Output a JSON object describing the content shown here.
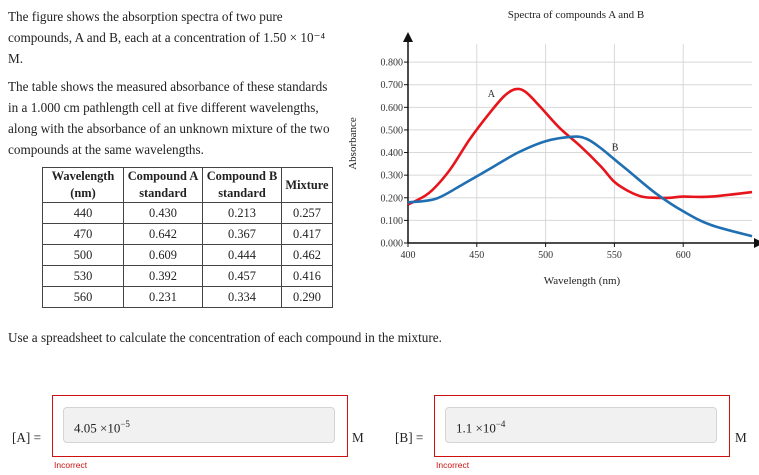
{
  "intro": {
    "p1": "The figure shows the absorption spectra of two pure compounds, A and B, each at a concentration of 1.50 × 10⁻⁴ M.",
    "p2": "The table shows the measured absorbance of these standards in a 1.000 cm pathlength cell at five different wavelengths, along with the absorbance of an unknown mixture of the two compounds at the same wavelengths."
  },
  "table": {
    "headers": [
      "Wavelength (nm)",
      "Compound A standard",
      "Compound B standard",
      "Mixture"
    ],
    "rows": [
      [
        "440",
        "0.430",
        "0.213",
        "0.257"
      ],
      [
        "470",
        "0.642",
        "0.367",
        "0.417"
      ],
      [
        "500",
        "0.609",
        "0.444",
        "0.462"
      ],
      [
        "530",
        "0.392",
        "0.457",
        "0.416"
      ],
      [
        "560",
        "0.231",
        "0.334",
        "0.290"
      ]
    ]
  },
  "chart_data": {
    "type": "line",
    "title": "Spectra of compounds A and B",
    "xlabel": "Wavelength (nm)",
    "ylabel": "Absorbance",
    "xlim": [
      400,
      650
    ],
    "ylim": [
      0,
      0.88
    ],
    "xticks": [
      "400",
      "450",
      "500",
      "550",
      "600"
    ],
    "yticks": [
      "0.000",
      "0.100",
      "0.200",
      "0.300",
      "0.400",
      "0.500",
      "0.600",
      "0.700",
      "0.800"
    ],
    "grid": true,
    "series": [
      {
        "name": "A",
        "color": "#e8141b",
        "x": [
          400,
          415,
          430,
          445,
          460,
          470,
          478,
          485,
          495,
          510,
          525,
          540,
          550,
          560,
          570,
          580,
          590,
          600,
          620,
          650
        ],
        "y": [
          0.17,
          0.22,
          0.32,
          0.46,
          0.58,
          0.65,
          0.68,
          0.67,
          0.61,
          0.51,
          0.43,
          0.34,
          0.27,
          0.23,
          0.205,
          0.2,
          0.2,
          0.205,
          0.205,
          0.225
        ]
      },
      {
        "name": "B",
        "color": "#1f6fb2",
        "x": [
          400,
          420,
          440,
          460,
          480,
          500,
          520,
          530,
          540,
          550,
          560,
          580,
          600,
          620,
          650
        ],
        "y": [
          0.18,
          0.195,
          0.26,
          0.33,
          0.4,
          0.45,
          0.47,
          0.46,
          0.42,
          0.37,
          0.32,
          0.22,
          0.14,
          0.08,
          0.03
        ]
      }
    ]
  },
  "instruction": "Use a spreadsheet to calculate the concentration of each compound in the mixture.",
  "answers": {
    "a": {
      "label": "[A] =",
      "mantissa": "4.05",
      "times": "×10",
      "exponent": "−5",
      "unit": "M",
      "status": "Incorrect"
    },
    "b": {
      "label": "[B] =",
      "mantissa": "1.1",
      "times": "×10",
      "exponent": "−4",
      "unit": "M",
      "status": "Incorrect"
    }
  }
}
